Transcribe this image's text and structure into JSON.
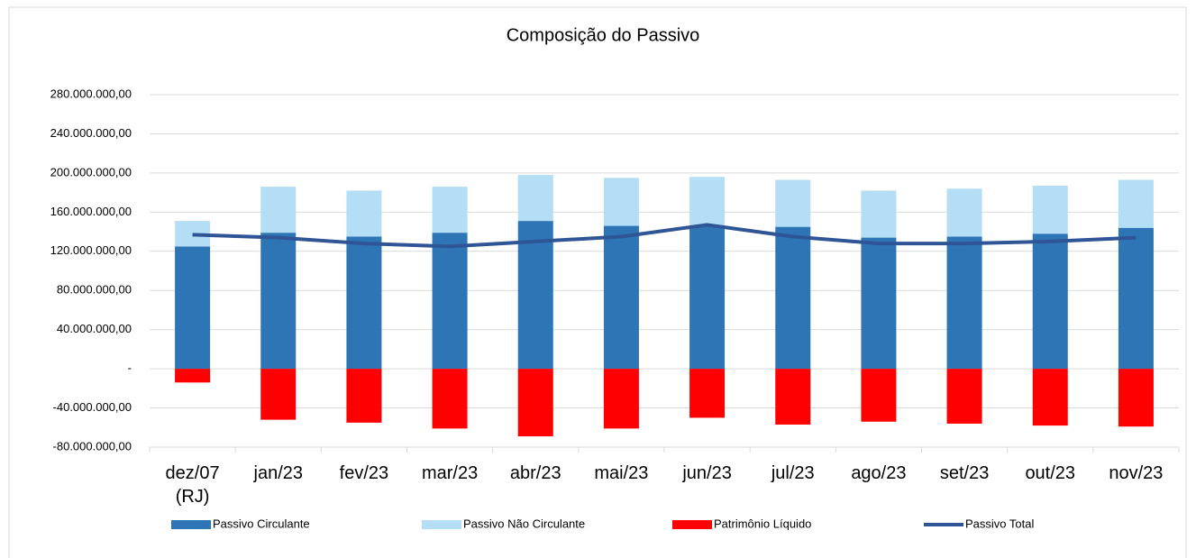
{
  "chart_data": {
    "type": "bar",
    "title": "Composição do Passivo",
    "categories": [
      "dez/07\n(RJ)",
      "jan/23",
      "fev/23",
      "mar/23",
      "abr/23",
      "mai/23",
      "jun/23",
      "jul/23",
      "ago/23",
      "set/23",
      "out/23",
      "nov/23"
    ],
    "series": [
      {
        "name": "Passivo Circulante",
        "type": "bar",
        "color": "#2e75b6",
        "values": [
          125000000,
          139000000,
          135000000,
          139000000,
          151000000,
          146000000,
          146000000,
          145000000,
          134000000,
          135000000,
          138000000,
          144000000
        ]
      },
      {
        "name": "Passivo Não Circulante",
        "type": "bar",
        "color": "#b4def5",
        "values": [
          26000000,
          47000000,
          47000000,
          47000000,
          47000000,
          49000000,
          50000000,
          48000000,
          48000000,
          49000000,
          49000000,
          49000000
        ]
      },
      {
        "name": "Patrimônio Líquido",
        "type": "bar",
        "color": "#ff0000",
        "values": [
          -14000000,
          -52000000,
          -55000000,
          -61000000,
          -69000000,
          -61000000,
          -50000000,
          -57000000,
          -54000000,
          -56000000,
          -58000000,
          -59000000
        ]
      },
      {
        "name": "Passivo Total",
        "type": "line",
        "color": "#2f5597",
        "values": [
          137000000,
          134000000,
          128000000,
          125000000,
          130000000,
          135000000,
          147000000,
          135000000,
          128000000,
          128000000,
          130000000,
          134000000
        ]
      }
    ],
    "stacked": true,
    "ylim": [
      -80000000,
      280000000
    ],
    "yticks": [
      {
        "value": -80000000,
        "label": "-80.000.000,00"
      },
      {
        "value": -40000000,
        "label": "-40.000.000,00"
      },
      {
        "value": 0,
        "label": "-"
      },
      {
        "value": 40000000,
        "label": "40.000.000,00"
      },
      {
        "value": 80000000,
        "label": "80.000.000,00"
      },
      {
        "value": 120000000,
        "label": "120.000.000,00"
      },
      {
        "value": 160000000,
        "label": "160.000.000,00"
      },
      {
        "value": 200000000,
        "label": "200.000.000,00"
      },
      {
        "value": 240000000,
        "label": "240.000.000,00"
      },
      {
        "value": 280000000,
        "label": "280.000.000,00"
      }
    ],
    "grid": true,
    "legend": "bottom"
  }
}
